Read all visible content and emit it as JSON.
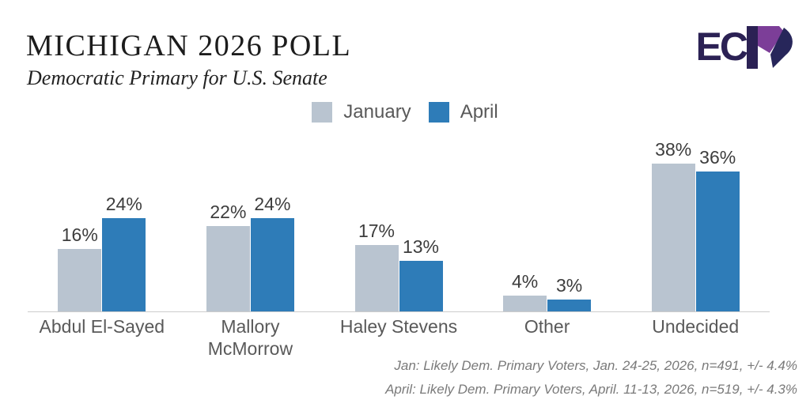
{
  "header": {
    "title": "MICHIGAN 2026 POLL",
    "subtitle": "Democratic Primary for U.S. Senate"
  },
  "logo": {
    "text": "EC",
    "third_letter": "P"
  },
  "legend": [
    {
      "label": "January",
      "color": "#b9c4d0"
    },
    {
      "label": "April",
      "color": "#2e7cb8"
    }
  ],
  "chart_data": {
    "type": "bar",
    "categories": [
      "Abdul El-Sayed",
      "Mallory\nMcMorrow",
      "Haley Stevens",
      "Other",
      "Undecided"
    ],
    "series": [
      {
        "name": "January",
        "color": "#b9c4d0",
        "values": [
          16,
          22,
          17,
          4,
          38
        ]
      },
      {
        "name": "April",
        "color": "#2e7cb8",
        "values": [
          24,
          24,
          13,
          3,
          36
        ]
      }
    ],
    "value_suffix": "%",
    "title": "MICHIGAN 2026 POLL",
    "subtitle": "Democratic Primary for U.S. Senate",
    "xlabel": "",
    "ylabel": "",
    "ylim": [
      0,
      40
    ],
    "grid": false,
    "legend_position": "top-center",
    "data_labels": true
  },
  "footnotes": {
    "line1": "Jan: Likely Dem. Primary Voters, Jan. 24-25, 2026, n=491, +/- 4.4%",
    "line2": "April: Likely Dem. Primary Voters, April. 11-13, 2026, n=519, +/- 4.3%"
  },
  "colors": {
    "january_bar": "#b9c4d0",
    "april_bar": "#2e7cb8",
    "axis": "#cccccc",
    "value_text": "#3d3d3d",
    "category_text": "#595959",
    "footnote_text": "#7a7a7a",
    "logo_navy": "#2b2154",
    "logo_purple": "#7c3e98",
    "logo_blue_navy": "#27265a"
  }
}
